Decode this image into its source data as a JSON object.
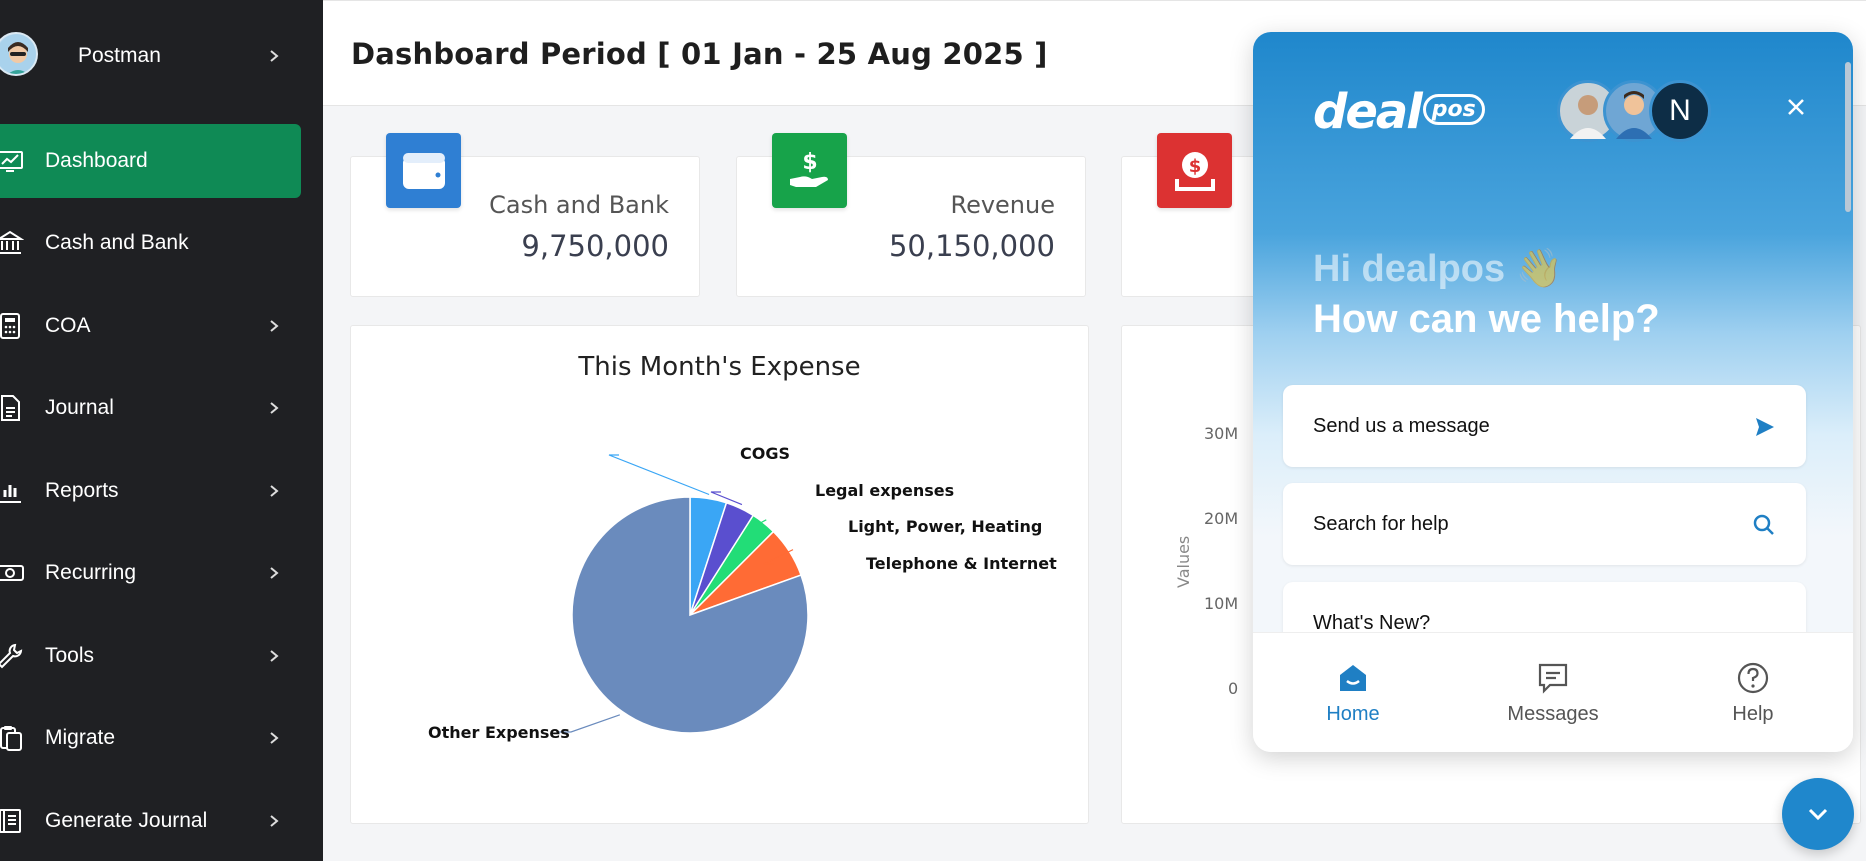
{
  "sidebar": {
    "user": {
      "name": "Postman"
    },
    "items": [
      {
        "label": "Dashboard",
        "icon": "chart-line-icon",
        "active": true
      },
      {
        "label": "Cash and Bank",
        "icon": "bank-icon"
      },
      {
        "label": "COA",
        "icon": "calculator-icon"
      },
      {
        "label": "Journal",
        "icon": "document-icon"
      },
      {
        "label": "Reports",
        "icon": "bar-chart-icon"
      },
      {
        "label": "Recurring",
        "icon": "money-icon"
      },
      {
        "label": "Tools",
        "icon": "wrench-icon"
      },
      {
        "label": "Migrate",
        "icon": "clipboard-icon"
      },
      {
        "label": "Generate Journal",
        "icon": "book-icon"
      }
    ]
  },
  "header": {
    "title": "Dashboard Period [ 01 Jan - 25 Aug 2025 ]"
  },
  "cards": [
    {
      "label": "Cash and Bank",
      "value": "9,750,000",
      "color": "#2f7fd3",
      "icon": "wallet-icon"
    },
    {
      "label": "Revenue",
      "value": "50,150,000",
      "color": "#17a34a",
      "icon": "hand-dollar-icon"
    },
    {
      "label": "",
      "value": "",
      "color": "#dc3232",
      "icon": "dollar-tray-icon"
    }
  ],
  "expense_panel": {
    "title": "This Month's Expense",
    "chart_data": {
      "type": "pie",
      "title": "This Month's Expense",
      "labels": [
        "COGS",
        "Legal expenses",
        "Light, Power, Heating",
        "Telephone & Internet",
        "Other Expenses"
      ],
      "values": [
        5,
        4,
        3.5,
        7,
        80.5
      ],
      "colors": [
        "#3aa6f5",
        "#5a4fcf",
        "#22dd77",
        "#ff6b35",
        "#6a8bbd"
      ]
    }
  },
  "bar_panel": {
    "ylabel": "Values",
    "yticks": [
      "30M",
      "20M",
      "10M",
      "0"
    ]
  },
  "chat": {
    "logo_main": "deal",
    "logo_sub": "pos",
    "team_initial": "N",
    "greeting_line1": "Hi dealpos 👋",
    "greeting_line2": "How can we help?",
    "buttons": [
      {
        "label": "Send us a message",
        "icon": "send-icon"
      },
      {
        "label": "Search for help",
        "icon": "search-icon"
      },
      {
        "label": "What's New?",
        "icon": ""
      }
    ],
    "tabs": [
      {
        "label": "Home",
        "active": true
      },
      {
        "label": "Messages"
      },
      {
        "label": "Help"
      }
    ],
    "accent": "#1f87cc"
  }
}
